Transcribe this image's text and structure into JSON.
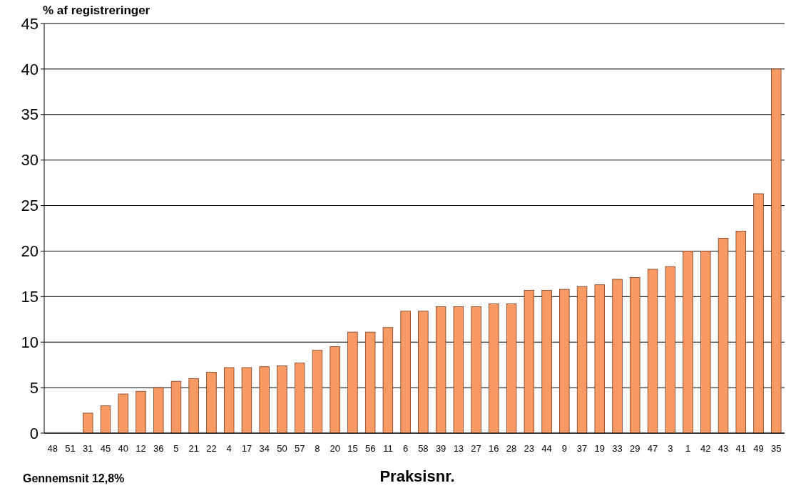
{
  "chart_data": {
    "type": "bar",
    "ylabel": "% af registreringer",
    "xlabel": "Praksisnr.",
    "annotations": [
      "Gennemsnit 12,8%"
    ],
    "categories": [
      "48",
      "51",
      "31",
      "45",
      "40",
      "12",
      "36",
      "5",
      "21",
      "22",
      "4",
      "17",
      "34",
      "50",
      "57",
      "8",
      "20",
      "15",
      "56",
      "11",
      "6",
      "58",
      "39",
      "13",
      "27",
      "16",
      "28",
      "23",
      "44",
      "9",
      "37",
      "19",
      "33",
      "29",
      "47",
      "3",
      "1",
      "42",
      "43",
      "41",
      "49",
      "35"
    ],
    "values": [
      0,
      0,
      2.2,
      3.0,
      4.3,
      4.6,
      5.0,
      5.7,
      6.0,
      6.7,
      7.2,
      7.2,
      7.3,
      7.4,
      7.7,
      9.1,
      9.5,
      11.1,
      11.1,
      11.6,
      13.4,
      13.4,
      13.9,
      13.9,
      13.9,
      14.2,
      14.2,
      15.7,
      15.7,
      15.8,
      16.1,
      16.3,
      16.9,
      17.1,
      18.0,
      18.3,
      20.0,
      20.0,
      21.4,
      22.2,
      26.3,
      40.0
    ],
    "color": "#f79a64",
    "ylim": [
      0,
      45
    ],
    "yticks": [
      0,
      5,
      10,
      15,
      20,
      25,
      30,
      35,
      40,
      45
    ],
    "grid": "y"
  }
}
